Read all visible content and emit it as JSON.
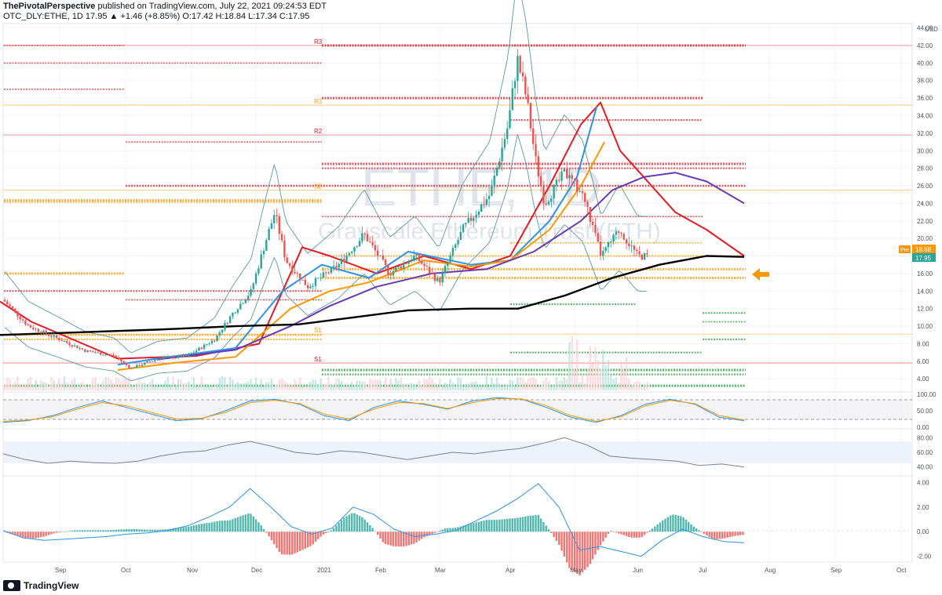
{
  "header": {
    "author": "ThePivotalPerspective",
    "published": "published on TradingView.com, July 22, 2021 09:24:53 EDT",
    "symbol_line": "OTC_DLY:ETHE, 1D  17.95  ▲ +1.46 (+8.85%)  O:17.42  H:18.84  L:17.34  C:17.95"
  },
  "watermark": {
    "ticker": "ETHE, 1D",
    "name": "Grayscale Ethereum Trust (ETH)"
  },
  "footer": {
    "brand": "TradingView"
  },
  "colors": {
    "up": "#26a69a",
    "down": "#ef5350",
    "ma_red": "#e31b23",
    "ma_blue": "#2a93ec",
    "ma_orange": "#ff9800",
    "ma_purple": "#673ab7",
    "ma_black": "#000000",
    "bollinger": "#5b9aa0",
    "resistance": "#e31b23",
    "support_level": "#ff9800",
    "green_level": "#1e9c39"
  },
  "price_labels": {
    "unit": "USD",
    "pre_tag": "Pre",
    "pre_value": "18.68",
    "last_value": "17.95"
  },
  "pivot_labels": {
    "r3": "R3",
    "r1": "R1",
    "r2": "R2",
    "s2": "S2",
    "s1": "S1"
  },
  "chart_data": [
    {
      "type": "candlestick",
      "title": "OTC_DLY:ETHE, 1D",
      "ylabel": "USD",
      "ylim": [
        2.5,
        44.5
      ],
      "yticks": [
        "44.00",
        "42.00",
        "40.00",
        "38.00",
        "36.00",
        "34.00",
        "32.00",
        "30.00",
        "28.00",
        "26.00",
        "24.00",
        "22.00",
        "20.00",
        "18.00",
        "16.00",
        "14.00",
        "12.00",
        "10.00",
        "8.00",
        "6.00",
        "4.00"
      ],
      "xticks": [
        "Sep",
        "Oct",
        "Nov",
        "Dec",
        "2021",
        "Feb",
        "Mar",
        "Apr",
        "May",
        "Jun",
        "Jul",
        "Aug",
        "Sep",
        "Oct"
      ],
      "approx_close_path": [
        {
          "date": "2020-08-01",
          "close": 13.0
        },
        {
          "date": "2020-08-15",
          "close": 10.0
        },
        {
          "date": "2020-09-01",
          "close": 8.5
        },
        {
          "date": "2020-09-15",
          "close": 7.2
        },
        {
          "date": "2020-10-01",
          "close": 6.6
        },
        {
          "date": "2020-10-10",
          "close": 5.2
        },
        {
          "date": "2020-10-25",
          "close": 6.3
        },
        {
          "date": "2020-11-10",
          "close": 6.6
        },
        {
          "date": "2020-11-25",
          "close": 8.5
        },
        {
          "date": "2020-12-05",
          "close": 11.5
        },
        {
          "date": "2020-12-15",
          "close": 14.0
        },
        {
          "date": "2020-12-22",
          "close": 19.0
        },
        {
          "date": "2020-12-28",
          "close": 23.0
        },
        {
          "date": "2021-01-03",
          "close": 17.5
        },
        {
          "date": "2021-01-15",
          "close": 14.5
        },
        {
          "date": "2021-02-01",
          "close": 17.0
        },
        {
          "date": "2021-02-15",
          "close": 20.5
        },
        {
          "date": "2021-03-01",
          "close": 16.0
        },
        {
          "date": "2021-03-15",
          "close": 18.0
        },
        {
          "date": "2021-03-28",
          "close": 15.0
        },
        {
          "date": "2021-04-10",
          "close": 21.0
        },
        {
          "date": "2021-04-25",
          "close": 25.0
        },
        {
          "date": "2021-05-05",
          "close": 33.0
        },
        {
          "date": "2021-05-10",
          "close": 40.5
        },
        {
          "date": "2021-05-15",
          "close": 36.0
        },
        {
          "date": "2021-05-20",
          "close": 29.0
        },
        {
          "date": "2021-05-25",
          "close": 24.0
        },
        {
          "date": "2021-06-05",
          "close": 27.5
        },
        {
          "date": "2021-06-15",
          "close": 25.0
        },
        {
          "date": "2021-06-25",
          "close": 18.0
        },
        {
          "date": "2021-07-05",
          "close": 21.0
        },
        {
          "date": "2021-07-15",
          "close": 18.0
        },
        {
          "date": "2021-07-21",
          "close": 17.95
        }
      ],
      "moving_averages": [
        {
          "color": "#e31b23",
          "points": [
            [
              0,
              12.8
            ],
            [
              40,
              10.5
            ],
            [
              150,
              6.3
            ],
            [
              250,
              6.6
            ],
            [
              330,
              8.0
            ],
            [
              385,
              19.0
            ],
            [
              420,
              18.0
            ],
            [
              480,
              16.0
            ],
            [
              540,
              18.0
            ],
            [
              600,
              16.5
            ],
            [
              650,
              18.0
            ],
            [
              700,
              26.0
            ],
            [
              740,
              33.0
            ],
            [
              765,
              35.5
            ],
            [
              790,
              30.0
            ],
            [
              820,
              27.0
            ],
            [
              860,
              23.0
            ],
            [
              900,
              21.0
            ],
            [
              948,
              18.0
            ]
          ]
        },
        {
          "color": "#2a93ec",
          "points": [
            [
              150,
              5.6
            ],
            [
              200,
              6.3
            ],
            [
              300,
              7.5
            ],
            [
              360,
              14.0
            ],
            [
              410,
              17.0
            ],
            [
              470,
              15.5
            ],
            [
              520,
              18.5
            ],
            [
              600,
              17.0
            ],
            [
              650,
              17.5
            ],
            [
              700,
              22.0
            ],
            [
              735,
              27.0
            ],
            [
              760,
              35.0
            ]
          ]
        },
        {
          "color": "#ff9800",
          "points": [
            [
              150,
              5.0
            ],
            [
              220,
              5.8
            ],
            [
              300,
              6.5
            ],
            [
              370,
              12.0
            ],
            [
              420,
              14.0
            ],
            [
              470,
              15.0
            ],
            [
              540,
              17.5
            ],
            [
              600,
              16.8
            ],
            [
              650,
              17.5
            ],
            [
              700,
              21.0
            ],
            [
              740,
              26.0
            ],
            [
              770,
              31.0
            ]
          ]
        },
        {
          "color": "#673ab7",
          "points": [
            [
              200,
              6.2
            ],
            [
              300,
              7.3
            ],
            [
              370,
              10.0
            ],
            [
              420,
              12.3
            ],
            [
              480,
              14.5
            ],
            [
              550,
              16.0
            ],
            [
              620,
              16.5
            ],
            [
              680,
              18.5
            ],
            [
              740,
              22.0
            ],
            [
              780,
              25.5
            ],
            [
              820,
              27.0
            ],
            [
              860,
              27.5
            ],
            [
              900,
              26.5
            ],
            [
              948,
              24.0
            ]
          ]
        },
        {
          "color": "#000000",
          "points": [
            [
              0,
              9.0
            ],
            [
              100,
              9.3
            ],
            [
              200,
              9.6
            ],
            [
              300,
              10.0
            ],
            [
              380,
              10.2
            ],
            [
              450,
              11.0
            ],
            [
              520,
              11.8
            ],
            [
              600,
              12.0
            ],
            [
              660,
              12.0
            ],
            [
              720,
              13.5
            ],
            [
              780,
              15.5
            ],
            [
              840,
              17.0
            ],
            [
              900,
              18.0
            ],
            [
              948,
              17.9
            ]
          ]
        }
      ]
    },
    {
      "type": "line",
      "title": "",
      "ylim": [
        0,
        100
      ],
      "yticks": [
        "100.00",
        "50.00",
        "0.00"
      ],
      "series": [
        {
          "color": "#2a93ec",
          "values": [
            15,
            20,
            35,
            60,
            80,
            60,
            40,
            20,
            25,
            50,
            80,
            85,
            70,
            35,
            20,
            60,
            80,
            70,
            55,
            80,
            90,
            85,
            60,
            30,
            15,
            35,
            70,
            85,
            70,
            30,
            20
          ]
        },
        {
          "color": "#ff9800",
          "values": [
            18,
            22,
            32,
            55,
            75,
            65,
            45,
            25,
            27,
            45,
            75,
            82,
            72,
            40,
            25,
            55,
            75,
            72,
            57,
            75,
            87,
            86,
            65,
            35,
            18,
            32,
            65,
            82,
            72,
            35,
            22
          ]
        }
      ]
    },
    {
      "type": "line",
      "title": "",
      "ylim": [
        30,
        90
      ],
      "yticks": [
        "80.00",
        "60.00",
        "40.00"
      ],
      "series": [
        {
          "color": "#7b7f93",
          "values": [
            58,
            50,
            45,
            48,
            46,
            45,
            48,
            55,
            60,
            62,
            70,
            75,
            68,
            60,
            57,
            62,
            60,
            55,
            50,
            55,
            60,
            58,
            62,
            65,
            72,
            80,
            70,
            55,
            52,
            50,
            48,
            42,
            44,
            40
          ]
        }
      ]
    },
    {
      "type": "bar+line",
      "title": "",
      "ylim": [
        -2.4,
        4.4
      ],
      "yticks": [
        "4.00",
        "2.00",
        "0.00",
        "-2.00"
      ],
      "series": [
        {
          "color": "#2a93ec",
          "values": [
            0.1,
            -0.5,
            -0.7,
            -0.6,
            -0.5,
            -0.4,
            -0.2,
            -0.1,
            0.1,
            0.5,
            1.2,
            2.0,
            3.5,
            2.0,
            0.4,
            -0.2,
            0.3,
            2.0,
            1.4,
            0.2,
            -0.4,
            -0.2,
            0.1,
            0.9,
            1.7,
            2.7,
            3.9,
            2.0,
            -1.5,
            -1.2,
            -1.6,
            -2.0,
            -0.7,
            0.2,
            -0.4,
            -0.8,
            -0.9
          ]
        }
      ]
    }
  ]
}
